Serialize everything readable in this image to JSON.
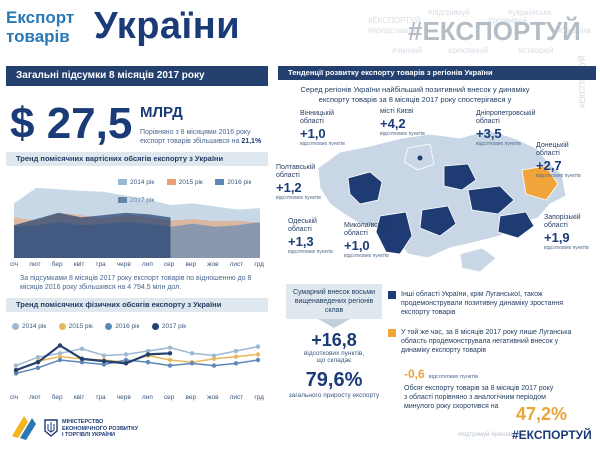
{
  "header": {
    "title_small": "Експорт\nтоварів",
    "title_big": "України",
    "tags_small": [
      "#підтримуй",
      "#українське",
      "#ЕКСПОРТУЙ",
      "#розвивай",
      "#представляй",
      "#Україна",
      "#змінюй",
      "#рекламуй",
      "#створюй"
    ],
    "tag_big": "#ЕКСПОРТУЙ"
  },
  "summary": {
    "heading": "Загальні підсумки 8 місяців 2017 року",
    "amount": "$ 27,5",
    "amount_unit": "МЛРД",
    "note_line1": "Порівняно з 8 місяцями 2016 року",
    "note_line2": "експорт товарів збільшився на",
    "note_pct": "21,1%"
  },
  "chart1": {
    "heading": "Тренд помісячних вартісних обсягів експорту з України",
    "legend": [
      {
        "label": "2014 рік",
        "color": "#9db8d3"
      },
      {
        "label": "2015 рік",
        "color": "#e8a072"
      },
      {
        "label": "2016 рік",
        "color": "#5d87b7"
      },
      {
        "label": "2017 рік",
        "color": "#24406e"
      }
    ],
    "months": [
      "січ",
      "лют",
      "бер",
      "квіт",
      "тра",
      "черв",
      "лип",
      "сер",
      "вер",
      "жов",
      "лист",
      "грд"
    ],
    "note": "За підсумками 8 місяців 2017 року експорт товарів по відношенню до 8 місяців 2016 року збільшився на 4 794,5 млн дол."
  },
  "chart_data": [
    {
      "type": "area",
      "title": "Тренд помісячних вартісних обсягів експорту з України",
      "xlabel": "",
      "ylabel": "",
      "categories": [
        "січ",
        "лют",
        "бер",
        "квіт",
        "тра",
        "черв",
        "лип",
        "сер",
        "вер",
        "жов",
        "лист",
        "грд"
      ],
      "ylim": [
        0,
        100
      ],
      "series": [
        {
          "name": "2014 рік",
          "values": [
            70,
            90,
            88,
            86,
            85,
            80,
            75,
            68,
            70,
            66,
            62,
            64
          ]
        },
        {
          "name": "2015 рік",
          "values": [
            52,
            48,
            58,
            55,
            50,
            56,
            52,
            48,
            50,
            47,
            48,
            45
          ]
        },
        {
          "name": "2016 рік",
          "values": [
            40,
            42,
            46,
            42,
            44,
            46,
            44,
            40,
            44,
            40,
            42,
            46
          ]
        },
        {
          "name": "2017 рік",
          "values": [
            42,
            50,
            58,
            52,
            55,
            58,
            56,
            52,
            null,
            null,
            null,
            null
          ]
        }
      ]
    },
    {
      "type": "line",
      "title": "Тренд помісячних фізичних обсягів експорту з України",
      "xlabel": "",
      "ylabel": "",
      "categories": [
        "січ",
        "лют",
        "бер",
        "квіт",
        "тра",
        "черв",
        "лип",
        "сер",
        "вер",
        "жов",
        "лист",
        "грд"
      ],
      "ylim": [
        0,
        100
      ],
      "series": [
        {
          "name": "2014 рік",
          "values": [
            40,
            55,
            62,
            70,
            58,
            60,
            66,
            72,
            62,
            58,
            66,
            74
          ]
        },
        {
          "name": "2015 рік",
          "values": [
            30,
            48,
            56,
            52,
            50,
            46,
            58,
            50,
            46,
            52,
            56,
            60
          ]
        },
        {
          "name": "2016 рік",
          "values": [
            26,
            36,
            50,
            46,
            42,
            50,
            46,
            40,
            44,
            40,
            44,
            50
          ]
        },
        {
          "name": "2017 рік",
          "values": [
            32,
            46,
            76,
            52,
            48,
            44,
            60,
            62,
            null,
            null,
            null,
            null
          ]
        }
      ]
    }
  ],
  "chart2": {
    "heading": "Тренд помісячних фізичних обсягів експорту з України",
    "legend": [
      {
        "label": "2014 рік",
        "color": "#9db8d3"
      },
      {
        "label": "2015 рік",
        "color": "#e8b85c"
      },
      {
        "label": "2016 рік",
        "color": "#5d87b7"
      },
      {
        "label": "2017 рік",
        "color": "#24406e"
      }
    ],
    "months": [
      "січ",
      "лют",
      "бер",
      "квіт",
      "тра",
      "черв",
      "лип",
      "сер",
      "вер",
      "жов",
      "лист",
      "грд"
    ]
  },
  "regions": {
    "heading": "Тенденції розвитку експорту товарів з регіонів України",
    "intro": "Серед регіонів України найбільший позитивний внесок у динаміку експорту товарів за 8 місяців 2017 року спостерігався у",
    "unit": "відсоткових пунктів",
    "items": [
      {
        "name": "Вінницькій\nобласті",
        "value": "+1,0"
      },
      {
        "name": "місті Києві",
        "value": "+4,2"
      },
      {
        "name": "Дніпропетровській\nобласті",
        "value": "+3,5"
      },
      {
        "name": "Донецькій\nобласті",
        "value": "+2,7"
      },
      {
        "name": "Полтавській\nобласті",
        "value": "+1,2"
      },
      {
        "name": "Одеській\nобласті",
        "value": "+1,3"
      },
      {
        "name": "Миколаївській\nобласті",
        "value": "+1,0"
      },
      {
        "name": "Запорізькій\nобласті",
        "value": "+1,9"
      }
    ]
  },
  "summary_box": {
    "text": "Сумарний внесок восьми вищенаведених регіонів склав",
    "value": "+16,8",
    "unit": "відсоткових пунктів,",
    "sub": "що складає",
    "pct": "79,6%",
    "pct_caption": "загального приросту експорту"
  },
  "notes": {
    "other": "Інші області України, крім Луганської, також продемонстрували позитивну динаміку зростання експорту товарів",
    "luhansk": "У той же час, за 8 місяців 2017 року лише Луганська область продемонструвала негативний внесок у динаміку експорту товарів",
    "luhansk_value": "-0,6",
    "luhansk_unit": "відсоткових пунктів",
    "decline_text": "Обсяг експорту товарів за 8 місяців 2017 року з області порівняно з аналогічним періодом минулого року скоротився на",
    "decline_pct": "47,2%"
  },
  "footer": {
    "ministry": "МІНІСТЕРСТВО\nЕКОНОМІЧНОГО РОЗВИТКУ\nІ ТОРГІВЛІ УКРАЇНИ",
    "tag_small": "#підтримуй #рекламуй",
    "tag_big": "#ЕКСПОРТУЙ"
  },
  "colors": {
    "dark_navy": "#24406e",
    "blue": "#1b3b78",
    "accent_orange": "#e8a53c",
    "map_dark": "#1f3b73",
    "map_light": "#c8d6e6",
    "map_orange": "#f0a43a"
  }
}
